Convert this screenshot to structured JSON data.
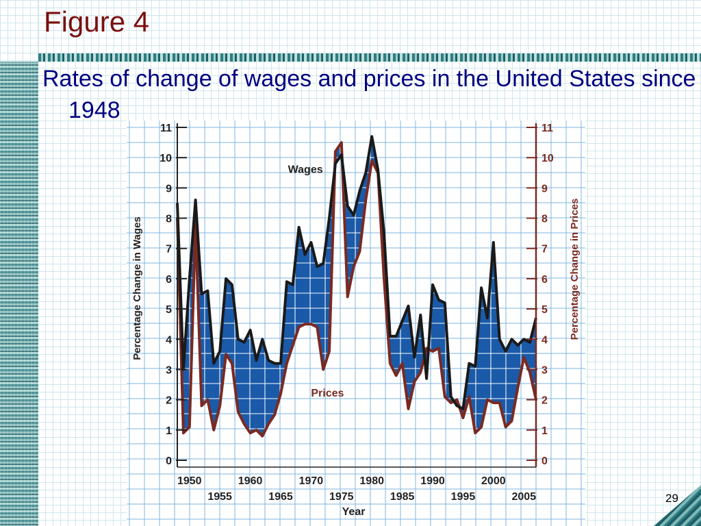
{
  "slide": {
    "title": "Figure 4",
    "body": "Rates of change of wages and prices in the United States since 1948",
    "page_number": "29"
  },
  "colors": {
    "title": "#7a1010",
    "body_text": "#000080",
    "wages_line": "#1a1a1a",
    "prices_line": "#7a2a22",
    "fill": "#1a5aa8",
    "grid": "#7fb6e0"
  },
  "chart_data": {
    "type": "line",
    "xlabel": "Year",
    "ylabel_left": "Percentage Change in Wages",
    "ylabel_right": "Percentage Change in Prices",
    "ylim": [
      0,
      11
    ],
    "xlim": [
      1948,
      2007
    ],
    "yticks": [
      "0",
      "1",
      "2",
      "3",
      "4",
      "5",
      "6",
      "7",
      "8",
      "9",
      "10",
      "11"
    ],
    "xticks_row1": [
      "1950",
      "1960",
      "1970",
      "1980",
      "1990",
      "2000"
    ],
    "xticks_row2": [
      "1955",
      "1965",
      "1975",
      "1985",
      "1995",
      "2005"
    ],
    "annotations": [
      "Wages",
      "Prices"
    ],
    "grid": true,
    "fill_between": true,
    "series": [
      {
        "name": "Wages",
        "x": [
          1948,
          1949,
          1950,
          1951,
          1952,
          1953,
          1954,
          1955,
          1956,
          1957,
          1958,
          1959,
          1960,
          1961,
          1962,
          1963,
          1964,
          1965,
          1966,
          1967,
          1968,
          1969,
          1970,
          1971,
          1972,
          1973,
          1974,
          1975,
          1976,
          1977,
          1978,
          1979,
          1980,
          1981,
          1982,
          1983,
          1984,
          1985,
          1986,
          1987,
          1988,
          1989,
          1990,
          1991,
          1992,
          1993,
          1994,
          1995,
          1996,
          1997,
          1998,
          1999,
          2000,
          2001,
          2002,
          2003,
          2004,
          2005,
          2006,
          2007
        ],
        "values": [
          8.5,
          3.0,
          6.0,
          8.6,
          5.5,
          5.6,
          3.2,
          3.6,
          6.0,
          5.8,
          4.0,
          3.9,
          4.3,
          3.3,
          4.0,
          3.3,
          3.2,
          3.2,
          5.9,
          5.8,
          7.7,
          6.8,
          7.2,
          6.4,
          6.5,
          8.0,
          9.8,
          10.1,
          8.4,
          8.1,
          8.9,
          9.5,
          10.7,
          9.6,
          7.5,
          4.1,
          4.1,
          4.6,
          5.1,
          3.4,
          4.8,
          2.7,
          5.8,
          5.3,
          5.2,
          2.1,
          1.8,
          1.7,
          3.2,
          3.1,
          5.7,
          4.7,
          7.2,
          4.0,
          3.6,
          4.0,
          3.8,
          4.0,
          3.9,
          4.7
        ]
      },
      {
        "name": "Prices",
        "x": [
          1948,
          1949,
          1950,
          1951,
          1952,
          1953,
          1954,
          1955,
          1956,
          1957,
          1958,
          1959,
          1960,
          1961,
          1962,
          1963,
          1964,
          1965,
          1966,
          1967,
          1968,
          1969,
          1970,
          1971,
          1972,
          1973,
          1974,
          1975,
          1976,
          1977,
          1978,
          1979,
          1980,
          1981,
          1982,
          1983,
          1984,
          1985,
          1986,
          1987,
          1988,
          1989,
          1990,
          1991,
          1992,
          1993,
          1994,
          1995,
          1996,
          1997,
          1998,
          1999,
          2000,
          2001,
          2002,
          2003,
          2004,
          2005,
          2006,
          2007
        ],
        "values": [
          8.0,
          0.9,
          1.1,
          7.8,
          1.8,
          2.0,
          1.0,
          1.8,
          3.5,
          3.2,
          1.6,
          1.2,
          0.9,
          1.0,
          0.8,
          1.2,
          1.5,
          2.2,
          3.2,
          3.8,
          4.4,
          4.5,
          4.5,
          4.4,
          3.0,
          3.6,
          10.2,
          10.5,
          5.4,
          6.4,
          6.9,
          8.6,
          9.9,
          9.5,
          6.0,
          3.2,
          2.8,
          3.2,
          1.7,
          2.6,
          2.9,
          3.7,
          3.6,
          3.7,
          2.1,
          1.9,
          2.0,
          1.4,
          2.1,
          0.9,
          1.1,
          2.0,
          1.9,
          1.9,
          1.1,
          1.3,
          2.4,
          3.4,
          2.9,
          2.0
        ]
      }
    ]
  }
}
